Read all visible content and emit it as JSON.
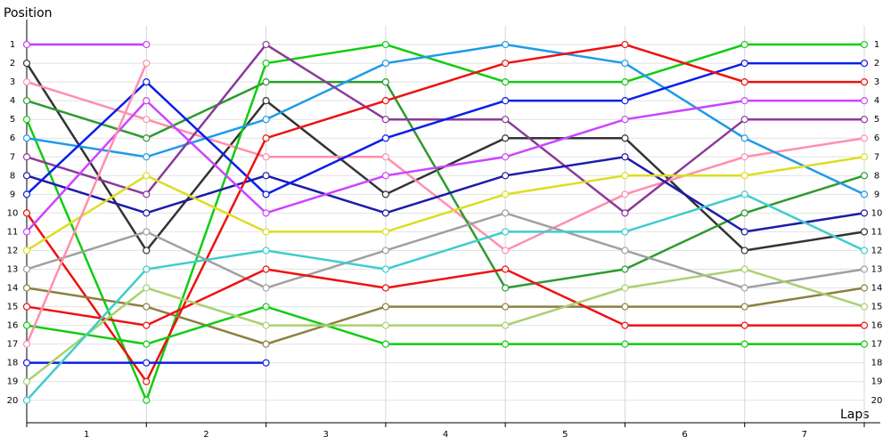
{
  "chart_data": {
    "type": "line",
    "y_title": "Position",
    "x_title": "Laps",
    "x": [
      0,
      1,
      2,
      3,
      4,
      5,
      6,
      7
    ],
    "categories": [
      "1",
      "2",
      "3",
      "4",
      "5",
      "6",
      "7"
    ],
    "xlim": [
      0,
      7
    ],
    "ylim": [
      0,
      21.2
    ],
    "inverted": true,
    "grid": true,
    "yticks": [
      1,
      2,
      3,
      4,
      5,
      6,
      7,
      8,
      9,
      10,
      11,
      12,
      13,
      14,
      15,
      16,
      17,
      18,
      19,
      20
    ],
    "series": [
      {
        "color": "#c53ef5",
        "values": [
          1,
          1,
          null,
          null,
          null,
          null,
          null,
          null
        ]
      },
      {
        "color": "#333333",
        "values": [
          2,
          12,
          4,
          9,
          6,
          6,
          12,
          11
        ]
      },
      {
        "color": "#ff8fae",
        "values": [
          3,
          5,
          7,
          7,
          12,
          9,
          7,
          6
        ]
      },
      {
        "color": "#2e9a2e",
        "values": [
          4,
          6,
          3,
          3,
          14,
          13,
          10,
          8
        ]
      },
      {
        "color": "#11cc11",
        "values": [
          5,
          20,
          2,
          1,
          3,
          3,
          1,
          1
        ]
      },
      {
        "color": "#1e9be8",
        "values": [
          6,
          7,
          5,
          2,
          1,
          2,
          6,
          9
        ]
      },
      {
        "color": "#8b3a9a",
        "values": [
          7,
          9,
          1,
          5,
          5,
          10,
          5,
          5
        ]
      },
      {
        "color": "#1c1ca8",
        "values": [
          8,
          10,
          8,
          10,
          8,
          7,
          11,
          10
        ]
      },
      {
        "color": "#0a1ee8",
        "values": [
          9,
          3,
          9,
          6,
          4,
          4,
          2,
          2
        ]
      },
      {
        "color": "#ee1111",
        "values": [
          10,
          19,
          6,
          4,
          2,
          1,
          3,
          3
        ]
      },
      {
        "color": "#cc44ff",
        "values": [
          11,
          4,
          10,
          8,
          7,
          5,
          4,
          4
        ]
      },
      {
        "color": "#dddd22",
        "values": [
          12,
          8,
          11,
          11,
          9,
          8,
          8,
          7
        ]
      },
      {
        "color": "#a0a0a0",
        "values": [
          13,
          11,
          14,
          12,
          10,
          12,
          14,
          13
        ]
      },
      {
        "color": "#8b8040",
        "values": [
          14,
          15,
          17,
          15,
          15,
          15,
          15,
          14
        ]
      },
      {
        "color": "#ee1111",
        "values": [
          15,
          16,
          13,
          14,
          13,
          16,
          16,
          16
        ]
      },
      {
        "color": "#11cc11",
        "values": [
          16,
          17,
          15,
          17,
          17,
          17,
          17,
          17
        ]
      },
      {
        "color": "#ff8fae",
        "values": [
          17,
          2,
          null,
          null,
          null,
          null,
          null,
          null
        ]
      },
      {
        "color": "#0a1ee8",
        "values": [
          18,
          18,
          18,
          null,
          null,
          null,
          null,
          null
        ]
      },
      {
        "color": "#aad070",
        "values": [
          19,
          14,
          16,
          16,
          16,
          14,
          13,
          15
        ]
      },
      {
        "color": "#40cccc",
        "values": [
          20,
          13,
          12,
          13,
          11,
          11,
          9,
          12
        ]
      }
    ]
  }
}
